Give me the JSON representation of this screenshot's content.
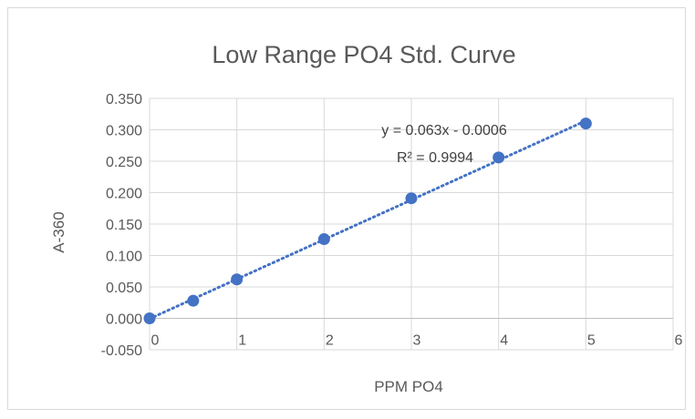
{
  "chart_data": {
    "type": "scatter",
    "title": "Low Range PO4 Std. Curve",
    "xlabel": "PPM PO4",
    "ylabel": "A-360",
    "xlim": [
      0,
      6
    ],
    "ylim": [
      -0.05,
      0.35
    ],
    "x_ticks": [
      0,
      1,
      2,
      3,
      4,
      5,
      6
    ],
    "y_ticks": [
      -0.05,
      0.0,
      0.05,
      0.1,
      0.15,
      0.2,
      0.25,
      0.3,
      0.35
    ],
    "x_tick_labels": [
      "0",
      "1",
      "2",
      "3",
      "4",
      "5",
      "6"
    ],
    "y_tick_labels": [
      "-0.050",
      "0.000",
      "0.050",
      "0.100",
      "0.150",
      "0.200",
      "0.250",
      "0.300",
      "0.350"
    ],
    "grid": true,
    "marker_color": "#4472c4",
    "series": [
      {
        "x": [
          0,
          0.5,
          1,
          2,
          3,
          4,
          5
        ],
        "y": [
          0.0,
          0.028,
          0.062,
          0.126,
          0.191,
          0.256,
          0.31
        ]
      }
    ],
    "trendline": {
      "type": "linear",
      "slope": 0.063,
      "intercept": -0.0006,
      "x_range": [
        0,
        5
      ],
      "style": "dotted",
      "equation": "y = 0.063x - 0.0006",
      "r_squared": "R² = 0.9994"
    }
  }
}
